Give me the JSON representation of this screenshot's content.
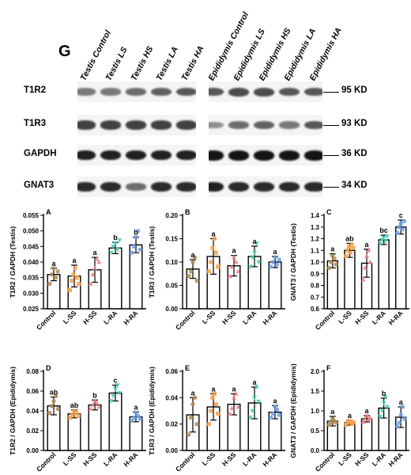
{
  "blot": {
    "panel_letter": "G",
    "lanes": [
      "Testis Control",
      "Testis LS",
      "Testis HS",
      "Testis LA",
      "Testis HA",
      "Epididymis Control",
      "Epididymis LS",
      "Epididymis HS",
      "Epididymis  LA",
      "Epididymis HA"
    ],
    "rows": [
      {
        "name": "T1R2",
        "mw": "95 KD",
        "intensity": [
          0.55,
          0.55,
          0.6,
          0.65,
          0.7,
          0.7,
          0.75,
          0.75,
          0.7,
          0.7
        ]
      },
      {
        "name": "T1R3",
        "mw": "93 KD",
        "intensity": [
          0.8,
          0.8,
          0.8,
          0.8,
          0.8,
          0.45,
          0.6,
          0.65,
          0.55,
          0.7
        ]
      },
      {
        "name": "GAPDH",
        "mw": "36 KD",
        "intensity": [
          0.95,
          0.95,
          0.95,
          0.95,
          0.95,
          1.0,
          1.0,
          1.0,
          1.0,
          1.0
        ]
      },
      {
        "name": "GNAT3",
        "mw": "34 KD",
        "intensity": [
          0.9,
          0.9,
          0.6,
          0.9,
          0.9,
          0.95,
          0.9,
          0.9,
          0.9,
          0.9
        ]
      }
    ]
  },
  "chart_data": [
    {
      "type": "bar",
      "panel": "A",
      "categories": [
        "Control",
        "L-SS",
        "H-SS",
        "L-RA",
        "H-RA"
      ],
      "values": [
        0.036,
        0.0355,
        0.0375,
        0.0445,
        0.0455
      ],
      "errors": [
        0.002,
        0.0035,
        0.004,
        0.0018,
        0.0025
      ],
      "letters": [
        "a",
        "a",
        "a",
        "b",
        "b"
      ],
      "ylabel": "T1R2 / GAPDH (Testis)",
      "ylim": [
        0.025,
        0.055
      ],
      "ticks": [
        "0.025",
        "0.030",
        "0.035",
        "0.040",
        "0.045",
        "0.050",
        "0.055"
      ],
      "points": [
        [
          0.033,
          0.036,
          0.038,
          0.035,
          0.037
        ],
        [
          0.031,
          0.034,
          0.036,
          0.038,
          0.035,
          0.033
        ],
        [
          0.033,
          0.036,
          0.038,
          0.041,
          0.04
        ],
        [
          0.043,
          0.045,
          0.046,
          0.044,
          0.047
        ],
        [
          0.043,
          0.045,
          0.048,
          0.05,
          0.044
        ]
      ]
    },
    {
      "type": "bar",
      "panel": "B",
      "categories": [
        "Control",
        "L-SS",
        "H-SS",
        "L-RA",
        "H-RA"
      ],
      "values": [
        0.085,
        0.112,
        0.092,
        0.112,
        0.1
      ],
      "errors": [
        0.02,
        0.038,
        0.022,
        0.022,
        0.012
      ],
      "letters": [
        "a",
        "a",
        "a",
        "a",
        "a"
      ],
      "ylabel": "T1R3 / GAPDH (Testis)",
      "ylim": [
        0,
        0.2
      ],
      "ticks": [
        "0.00",
        "0.05",
        "0.10",
        "0.15",
        "0.20"
      ],
      "points": [
        [
          0.07,
          0.08,
          0.1,
          0.11,
          0.06
        ],
        [
          0.08,
          0.1,
          0.13,
          0.15,
          0.12,
          0.09
        ],
        [
          0.07,
          0.09,
          0.11,
          0.1,
          0.08
        ],
        [
          0.09,
          0.11,
          0.12,
          0.14,
          0.1
        ],
        [
          0.09,
          0.1,
          0.11,
          0.095,
          0.105
        ]
      ]
    },
    {
      "type": "bar",
      "panel": "C",
      "categories": [
        "Control",
        "L-SS",
        "H-SS",
        "L-RA",
        "H-RA"
      ],
      "values": [
        1.01,
        1.1,
        0.99,
        1.19,
        1.3
      ],
      "errors": [
        0.06,
        0.06,
        0.12,
        0.04,
        0.06
      ],
      "letters": [
        "a",
        "ab",
        "a",
        "bc",
        "c"
      ],
      "ylabel": "GNAT3 / GAPDH (Testis)",
      "ylim": [
        0.6,
        1.4
      ],
      "ticks": [
        "0.6",
        "0.7",
        "0.8",
        "0.9",
        "1.0",
        "1.1",
        "1.2",
        "1.3",
        "1.4"
      ],
      "points": [
        [
          0.95,
          1.0,
          1.05,
          1.03,
          0.98
        ],
        [
          1.05,
          1.1,
          1.13,
          1.08,
          1.15,
          1.12
        ],
        [
          0.85,
          0.95,
          1.05,
          1.1,
          1.0
        ],
        [
          1.16,
          1.19,
          1.21,
          1.18,
          1.22
        ],
        [
          1.25,
          1.3,
          1.33,
          1.28,
          1.35
        ]
      ]
    },
    {
      "type": "bar",
      "panel": "D",
      "categories": [
        "Control",
        "L-SS",
        "H-SS",
        "L-RA",
        "H-RA"
      ],
      "values": [
        0.045,
        0.037,
        0.046,
        0.058,
        0.034
      ],
      "errors": [
        0.009,
        0.004,
        0.005,
        0.008,
        0.005
      ],
      "letters": [
        "ab",
        "ab",
        "b",
        "c",
        "a"
      ],
      "ylabel": "T1R2 / GAPDH (Epididymis)",
      "ylim": [
        0,
        0.08
      ],
      "ticks": [
        "0.00",
        "0.02",
        "0.04",
        "0.06",
        "0.08"
      ],
      "points": [
        [
          0.038,
          0.045,
          0.05,
          0.055,
          0.042
        ],
        [
          0.033,
          0.036,
          0.04,
          0.038,
          0.035
        ],
        [
          0.042,
          0.046,
          0.05,
          0.048,
          0.044
        ],
        [
          0.05,
          0.055,
          0.062,
          0.066,
          0.058
        ],
        [
          0.03,
          0.033,
          0.038,
          0.035,
          0.032
        ]
      ]
    },
    {
      "type": "bar",
      "panel": "E",
      "categories": [
        "Control",
        "L-SS",
        "H-SS",
        "L-RA",
        "H-RA"
      ],
      "values": [
        0.027,
        0.033,
        0.035,
        0.036,
        0.029
      ],
      "errors": [
        0.013,
        0.01,
        0.008,
        0.012,
        0.005
      ],
      "letters": [
        "a",
        "a",
        "a",
        "a",
        "a"
      ],
      "ylabel": "T1R3 / GAPDH (Epididymis)",
      "ylim": [
        0,
        0.06
      ],
      "ticks": [
        "0.00",
        "0.02",
        "0.04",
        "0.06"
      ],
      "points": [
        [
          0.012,
          0.025,
          0.035,
          0.04,
          0.02
        ],
        [
          0.02,
          0.03,
          0.04,
          0.043,
          0.035,
          0.028
        ],
        [
          0.028,
          0.032,
          0.04,
          0.043,
          0.033
        ],
        [
          0.025,
          0.03,
          0.04,
          0.048,
          0.037
        ],
        [
          0.025,
          0.028,
          0.033,
          0.031,
          0.027
        ]
      ]
    },
    {
      "type": "bar",
      "panel": "F",
      "categories": [
        "Control",
        "L-SS",
        "H-SS",
        "L-RA",
        "H-RA"
      ],
      "values": [
        0.74,
        0.7,
        0.8,
        1.07,
        0.84
      ],
      "errors": [
        0.12,
        0.06,
        0.08,
        0.25,
        0.26
      ],
      "letters": [
        "a",
        "a",
        "a",
        "b",
        "a"
      ],
      "ylabel": "GNAT3 / GAPDH (Epididymis)",
      "ylim": [
        0,
        2.0
      ],
      "ticks": [
        "0.0",
        "0.5",
        "1.0",
        "1.5",
        "2.0"
      ],
      "points": [
        [
          0.65,
          0.72,
          0.8,
          0.75,
          0.7
        ],
        [
          0.65,
          0.7,
          0.75,
          0.72,
          0.68,
          0.71
        ],
        [
          0.72,
          0.8,
          0.88,
          0.78,
          0.82
        ],
        [
          0.85,
          1.0,
          1.2,
          1.35,
          1.1
        ],
        [
          0.6,
          0.7,
          0.9,
          1.1,
          0.8
        ]
      ]
    }
  ],
  "colors": {
    "dots": [
      "#b08a52",
      "#f5a34c",
      "#f07e86",
      "#3fcfb4",
      "#6a9ee8"
    ],
    "bar_fill": "#ffffff",
    "bar_stroke": "#000000"
  }
}
